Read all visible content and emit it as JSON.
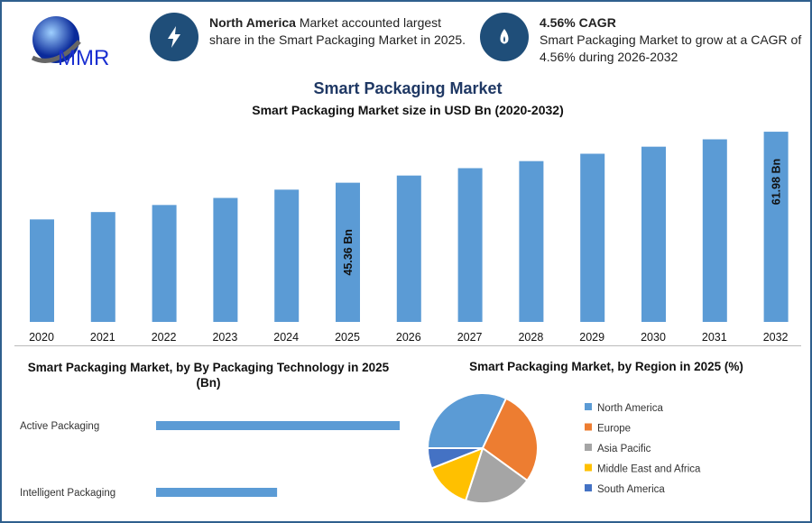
{
  "header": {
    "logo_text": "MMR",
    "info1": {
      "icon": "lightning-icon",
      "bold": "North America",
      "text": " Market accounted largest share in the Smart Packaging Market in 2025."
    },
    "info2": {
      "icon": "flame-icon",
      "bold": "4.56% CAGR",
      "text": "Smart Packaging Market to grow at a CAGR of 4.56% during 2026-2032"
    }
  },
  "colors": {
    "bar": "#5b9bd5",
    "title": "#1f3864",
    "frame": "#2f5f8d",
    "icon_circle": "#1f4e79"
  },
  "chart_data": [
    {
      "type": "bar",
      "title": "Smart Packaging Market",
      "subtitle": "Smart Packaging Market size in USD Bn (2020-2032)",
      "categories": [
        "2020",
        "2021",
        "2022",
        "2023",
        "2024",
        "2025",
        "2026",
        "2027",
        "2028",
        "2029",
        "2030",
        "2031",
        "2032"
      ],
      "values": [
        33.4,
        35.8,
        38.1,
        40.4,
        43.1,
        45.36,
        47.7,
        50.1,
        52.4,
        54.8,
        57.1,
        59.5,
        61.98
      ],
      "data_labels": {
        "2025": "45.36 Bn",
        "2032": "61.98 Bn"
      },
      "ylim": [
        0,
        65
      ],
      "grid": false,
      "color": "#5b9bd5"
    },
    {
      "type": "bar",
      "orientation": "horizontal",
      "title": "Smart Packaging Market, by By Packaging Technology in 2025 (Bn)",
      "categories": [
        "Active Packaging",
        "Intelligent Packaging"
      ],
      "values": [
        30.2,
        15.0
      ],
      "color": "#5b9bd5"
    },
    {
      "type": "pie",
      "title": "Smart Packaging Market, by Region in 2025 (%)",
      "legend": "right",
      "labels": [
        "North America",
        "Europe",
        "Asia Pacific",
        "Middle East and Africa",
        "South America"
      ],
      "values": [
        32,
        28,
        20,
        14,
        6
      ],
      "colors": [
        "#5b9bd5",
        "#ed7d31",
        "#a5a5a5",
        "#ffc000",
        "#4472c4"
      ]
    }
  ]
}
